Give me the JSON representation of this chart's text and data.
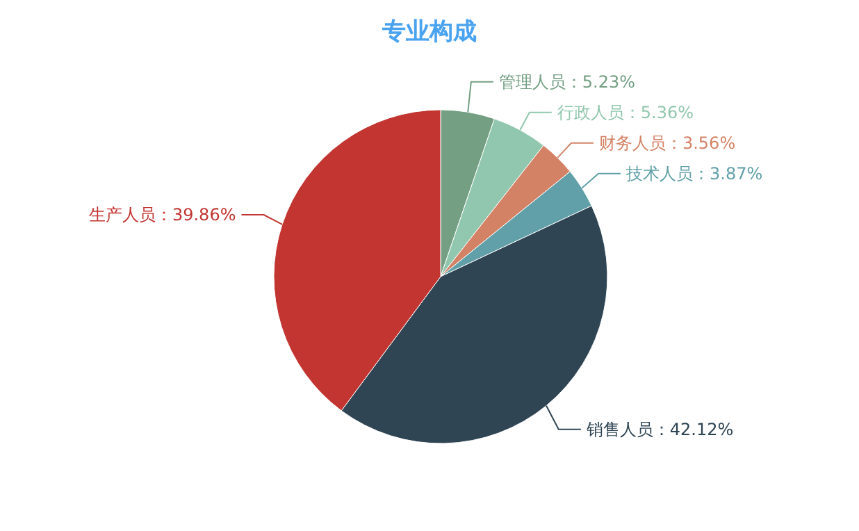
{
  "chart_data": {
    "type": "pie",
    "title": "专业构成",
    "categories": [
      "管理人员",
      "行政人员",
      "财务人员",
      "技术人员",
      "销售人员",
      "生产人员"
    ],
    "values": [
      5.23,
      5.36,
      3.56,
      3.87,
      42.12,
      39.86
    ],
    "colors": [
      "#749f83",
      "#91c7ae",
      "#d48265",
      "#61a0a8",
      "#2f4554",
      "#c23531"
    ],
    "value_labels": [
      "：5.23%",
      "：5.36%",
      "：3.56%",
      "：3.87%",
      "：42.12%",
      "：39.86%"
    ],
    "legend": false
  }
}
